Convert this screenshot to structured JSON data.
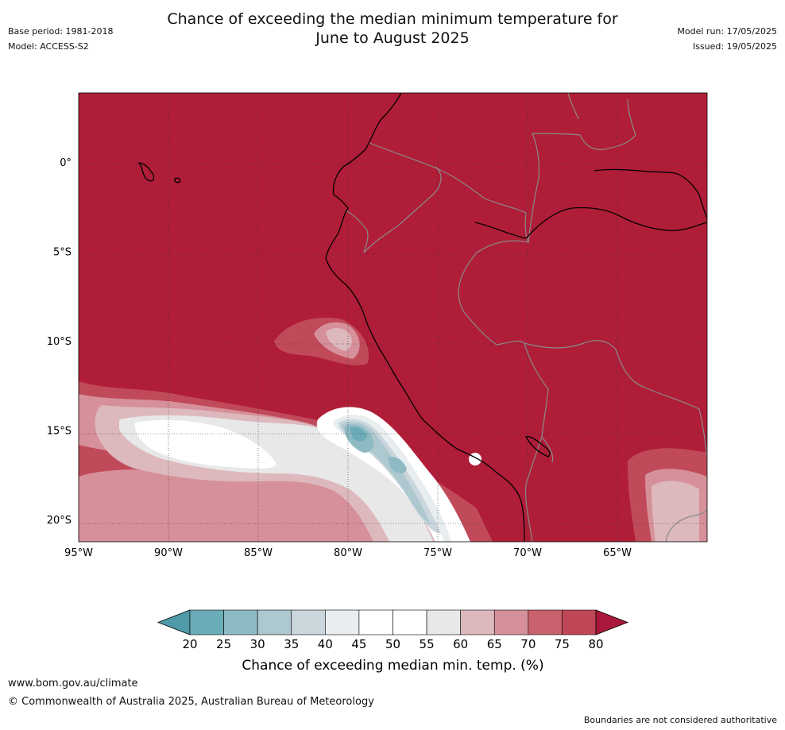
{
  "header": {
    "title_line1": "Chance of exceeding the median minimum temperature for",
    "title_line2": "June to August 2025",
    "base_period": "Base period: 1981-2018",
    "model": "Model: ACCESS-S2",
    "model_run": "Model run: 17/05/2025",
    "issued": "Issued: 19/05/2025"
  },
  "map": {
    "lon_range": [
      -95,
      -60
    ],
    "lat_range": [
      -21.2,
      3.9
    ],
    "lat_ticks": [
      {
        "value": 0,
        "label": "0°"
      },
      {
        "value": -5,
        "label": "5°S"
      },
      {
        "value": -10,
        "label": "10°S"
      },
      {
        "value": -15,
        "label": "15°S"
      },
      {
        "value": -20,
        "label": "20°S"
      }
    ],
    "lon_ticks": [
      {
        "value": -95,
        "label": "95°W"
      },
      {
        "value": -90,
        "label": "90°W"
      },
      {
        "value": -85,
        "label": "85°W"
      },
      {
        "value": -80,
        "label": "80°W"
      },
      {
        "value": -75,
        "label": "75°W"
      },
      {
        "value": -70,
        "label": "70°W"
      },
      {
        "value": -65,
        "label": "65°W"
      }
    ],
    "background_color": "#b01d38"
  },
  "colorbar": {
    "ticks": [
      "20",
      "25",
      "30",
      "35",
      "40",
      "45",
      "50",
      "55",
      "60",
      "65",
      "70",
      "75",
      "80"
    ],
    "colors": [
      "#6aacb8",
      "#8ebac4",
      "#adc8cf",
      "#cad6dc",
      "#e8eef0",
      "#ffffff",
      "#ffffff",
      "#e8e8e8",
      "#ddb8bd",
      "#d69099",
      "#c9606e",
      "#bf4656"
    ],
    "under_color": "#4f9aa8",
    "over_color": "#a9183a",
    "label": "Chance of exceeding median min. temp. (%)"
  },
  "footer": {
    "url": "www.bom.gov.au/climate",
    "copyright": "© Commonwealth of Australia 2025, Australian Bureau of Meteorology",
    "disclaimer": "Boundaries are not considered authoritative"
  }
}
